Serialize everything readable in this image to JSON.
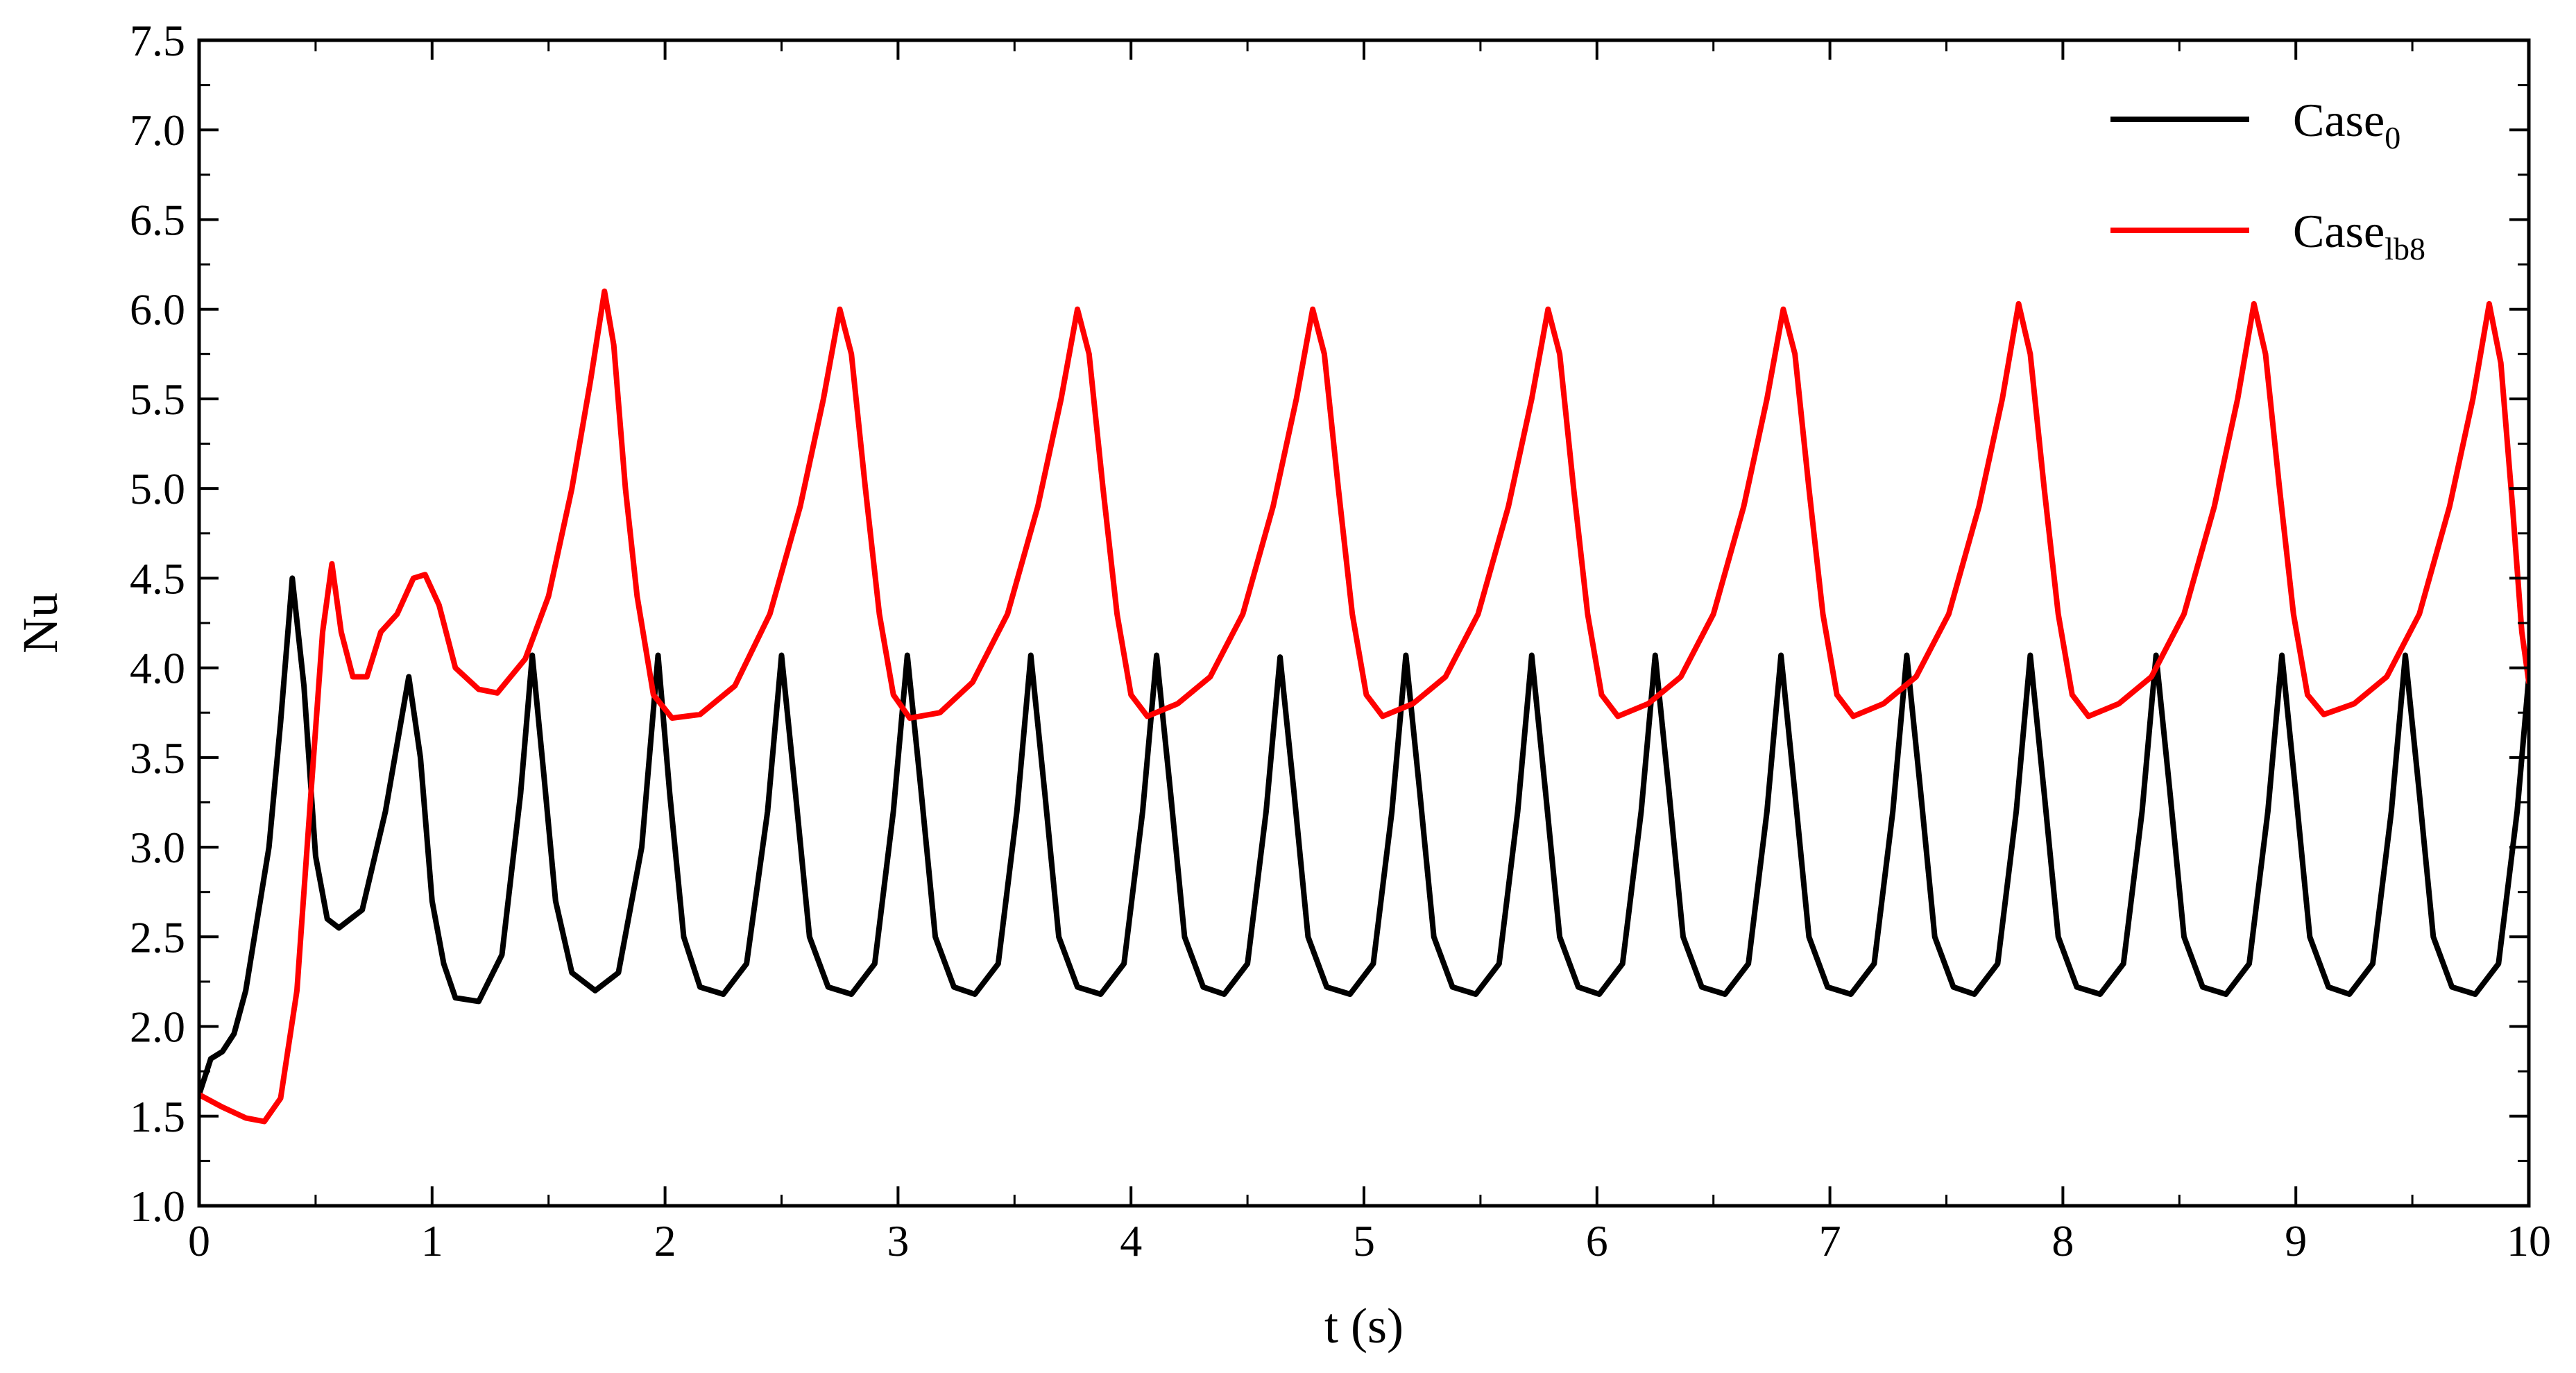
{
  "chart_data": {
    "type": "line",
    "xlabel": "t (s)",
    "ylabel": "Nu",
    "xlim": [
      0,
      10
    ],
    "ylim": [
      1.0,
      7.5
    ],
    "xticks": [
      "0",
      "1",
      "2",
      "3",
      "4",
      "5",
      "6",
      "7",
      "8",
      "9",
      "10"
    ],
    "yticks": [
      "1.0",
      "1.5",
      "2.0",
      "2.5",
      "3.0",
      "3.5",
      "4.0",
      "4.5",
      "5.0",
      "5.5",
      "6.0",
      "6.5",
      "7.0",
      "7.5"
    ],
    "grid": false,
    "legend_position": "top-right",
    "series": [
      {
        "name": "Case",
        "subscript": "0",
        "color": "#000000",
        "points": [
          [
            0.0,
            1.62
          ],
          [
            0.05,
            1.82
          ],
          [
            0.1,
            1.86
          ],
          [
            0.15,
            1.96
          ],
          [
            0.2,
            2.2
          ],
          [
            0.25,
            2.6
          ],
          [
            0.3,
            3.0
          ],
          [
            0.35,
            3.7
          ],
          [
            0.4,
            4.5
          ],
          [
            0.45,
            3.9
          ],
          [
            0.5,
            2.95
          ],
          [
            0.55,
            2.6
          ],
          [
            0.6,
            2.55
          ],
          [
            0.7,
            2.65
          ],
          [
            0.8,
            3.2
          ],
          [
            0.9,
            3.95
          ],
          [
            0.95,
            3.5
          ],
          [
            1.0,
            2.7
          ],
          [
            1.05,
            2.35
          ],
          [
            1.1,
            2.16
          ],
          [
            1.2,
            2.14
          ],
          [
            1.3,
            2.4
          ],
          [
            1.38,
            3.3
          ],
          [
            1.43,
            4.07
          ],
          [
            1.48,
            3.4
          ],
          [
            1.53,
            2.7
          ],
          [
            1.6,
            2.3
          ],
          [
            1.7,
            2.2
          ],
          [
            1.8,
            2.3
          ],
          [
            1.9,
            3.0
          ],
          [
            1.97,
            4.07
          ],
          [
            2.02,
            3.3
          ],
          [
            2.08,
            2.5
          ],
          [
            2.15,
            2.22
          ],
          [
            2.25,
            2.18
          ],
          [
            2.35,
            2.35
          ],
          [
            2.44,
            3.2
          ],
          [
            2.5,
            4.07
          ],
          [
            2.56,
            3.3
          ],
          [
            2.62,
            2.5
          ],
          [
            2.7,
            2.22
          ],
          [
            2.8,
            2.18
          ],
          [
            2.9,
            2.35
          ],
          [
            2.98,
            3.2
          ],
          [
            3.04,
            4.07
          ],
          [
            3.1,
            3.3
          ],
          [
            3.16,
            2.5
          ],
          [
            3.24,
            2.22
          ],
          [
            3.33,
            2.18
          ],
          [
            3.43,
            2.35
          ],
          [
            3.51,
            3.2
          ],
          [
            3.57,
            4.07
          ],
          [
            3.63,
            3.3
          ],
          [
            3.69,
            2.5
          ],
          [
            3.77,
            2.22
          ],
          [
            3.87,
            2.18
          ],
          [
            3.97,
            2.35
          ],
          [
            4.05,
            3.2
          ],
          [
            4.11,
            4.07
          ],
          [
            4.17,
            3.3
          ],
          [
            4.23,
            2.5
          ],
          [
            4.31,
            2.22
          ],
          [
            4.4,
            2.18
          ],
          [
            4.5,
            2.35
          ],
          [
            4.58,
            3.2
          ],
          [
            4.64,
            4.06
          ],
          [
            4.7,
            3.3
          ],
          [
            4.76,
            2.5
          ],
          [
            4.84,
            2.22
          ],
          [
            4.94,
            2.18
          ],
          [
            5.04,
            2.35
          ],
          [
            5.12,
            3.2
          ],
          [
            5.18,
            4.07
          ],
          [
            5.24,
            3.3
          ],
          [
            5.3,
            2.5
          ],
          [
            5.38,
            2.22
          ],
          [
            5.48,
            2.18
          ],
          [
            5.58,
            2.35
          ],
          [
            5.66,
            3.2
          ],
          [
            5.72,
            4.07
          ],
          [
            5.78,
            3.3
          ],
          [
            5.84,
            2.5
          ],
          [
            5.92,
            2.22
          ],
          [
            6.01,
            2.18
          ],
          [
            6.11,
            2.35
          ],
          [
            6.19,
            3.2
          ],
          [
            6.25,
            4.07
          ],
          [
            6.31,
            3.3
          ],
          [
            6.37,
            2.5
          ],
          [
            6.45,
            2.22
          ],
          [
            6.55,
            2.18
          ],
          [
            6.65,
            2.35
          ],
          [
            6.73,
            3.2
          ],
          [
            6.79,
            4.07
          ],
          [
            6.85,
            3.3
          ],
          [
            6.91,
            2.5
          ],
          [
            6.99,
            2.22
          ],
          [
            7.09,
            2.18
          ],
          [
            7.19,
            2.35
          ],
          [
            7.27,
            3.2
          ],
          [
            7.33,
            4.07
          ],
          [
            7.39,
            3.3
          ],
          [
            7.45,
            2.5
          ],
          [
            7.53,
            2.22
          ],
          [
            7.62,
            2.18
          ],
          [
            7.72,
            2.35
          ],
          [
            7.8,
            3.2
          ],
          [
            7.86,
            4.07
          ],
          [
            7.92,
            3.3
          ],
          [
            7.98,
            2.5
          ],
          [
            8.06,
            2.22
          ],
          [
            8.16,
            2.18
          ],
          [
            8.26,
            2.35
          ],
          [
            8.34,
            3.2
          ],
          [
            8.4,
            4.07
          ],
          [
            8.46,
            3.3
          ],
          [
            8.52,
            2.5
          ],
          [
            8.6,
            2.22
          ],
          [
            8.7,
            2.18
          ],
          [
            8.8,
            2.35
          ],
          [
            8.88,
            3.2
          ],
          [
            8.94,
            4.07
          ],
          [
            9.0,
            3.3
          ],
          [
            9.06,
            2.5
          ],
          [
            9.14,
            2.22
          ],
          [
            9.23,
            2.18
          ],
          [
            9.33,
            2.35
          ],
          [
            9.41,
            3.2
          ],
          [
            9.47,
            4.07
          ],
          [
            9.53,
            3.3
          ],
          [
            9.59,
            2.5
          ],
          [
            9.67,
            2.22
          ],
          [
            9.77,
            2.18
          ],
          [
            9.87,
            2.35
          ],
          [
            9.95,
            3.2
          ],
          [
            10.0,
            3.95
          ]
        ]
      },
      {
        "name": "Case",
        "subscript": "lb8",
        "color": "#ff0000",
        "points": [
          [
            0.0,
            1.62
          ],
          [
            0.1,
            1.55
          ],
          [
            0.2,
            1.49
          ],
          [
            0.28,
            1.47
          ],
          [
            0.35,
            1.6
          ],
          [
            0.42,
            2.2
          ],
          [
            0.48,
            3.3
          ],
          [
            0.53,
            4.2
          ],
          [
            0.57,
            4.58
          ],
          [
            0.61,
            4.2
          ],
          [
            0.66,
            3.95
          ],
          [
            0.72,
            3.95
          ],
          [
            0.78,
            4.2
          ],
          [
            0.85,
            4.3
          ],
          [
            0.92,
            4.5
          ],
          [
            0.97,
            4.52
          ],
          [
            1.03,
            4.35
          ],
          [
            1.1,
            4.0
          ],
          [
            1.2,
            3.88
          ],
          [
            1.28,
            3.86
          ],
          [
            1.4,
            4.05
          ],
          [
            1.5,
            4.4
          ],
          [
            1.6,
            5.0
          ],
          [
            1.68,
            5.6
          ],
          [
            1.74,
            6.1
          ],
          [
            1.78,
            5.8
          ],
          [
            1.83,
            5.0
          ],
          [
            1.88,
            4.4
          ],
          [
            1.95,
            3.85
          ],
          [
            2.03,
            3.72
          ],
          [
            2.15,
            3.74
          ],
          [
            2.3,
            3.9
          ],
          [
            2.45,
            4.3
          ],
          [
            2.58,
            4.9
          ],
          [
            2.68,
            5.5
          ],
          [
            2.75,
            6.0
          ],
          [
            2.8,
            5.75
          ],
          [
            2.86,
            5.0
          ],
          [
            2.92,
            4.3
          ],
          [
            2.98,
            3.85
          ],
          [
            3.05,
            3.72
          ],
          [
            3.18,
            3.75
          ],
          [
            3.32,
            3.92
          ],
          [
            3.47,
            4.3
          ],
          [
            3.6,
            4.9
          ],
          [
            3.7,
            5.5
          ],
          [
            3.77,
            6.0
          ],
          [
            3.82,
            5.75
          ],
          [
            3.88,
            5.0
          ],
          [
            3.94,
            4.3
          ],
          [
            4.0,
            3.85
          ],
          [
            4.07,
            3.73
          ],
          [
            4.2,
            3.8
          ],
          [
            4.34,
            3.95
          ],
          [
            4.48,
            4.3
          ],
          [
            4.61,
            4.9
          ],
          [
            4.71,
            5.5
          ],
          [
            4.78,
            6.0
          ],
          [
            4.83,
            5.75
          ],
          [
            4.89,
            5.0
          ],
          [
            4.95,
            4.3
          ],
          [
            5.01,
            3.85
          ],
          [
            5.08,
            3.73
          ],
          [
            5.21,
            3.8
          ],
          [
            5.35,
            3.95
          ],
          [
            5.49,
            4.3
          ],
          [
            5.62,
            4.9
          ],
          [
            5.72,
            5.5
          ],
          [
            5.79,
            6.0
          ],
          [
            5.84,
            5.75
          ],
          [
            5.9,
            5.0
          ],
          [
            5.96,
            4.3
          ],
          [
            6.02,
            3.85
          ],
          [
            6.09,
            3.73
          ],
          [
            6.22,
            3.8
          ],
          [
            6.36,
            3.95
          ],
          [
            6.5,
            4.3
          ],
          [
            6.63,
            4.9
          ],
          [
            6.73,
            5.5
          ],
          [
            6.8,
            6.0
          ],
          [
            6.85,
            5.75
          ],
          [
            6.91,
            5.0
          ],
          [
            6.97,
            4.3
          ],
          [
            7.03,
            3.85
          ],
          [
            7.1,
            3.73
          ],
          [
            7.23,
            3.8
          ],
          [
            7.37,
            3.95
          ],
          [
            7.51,
            4.3
          ],
          [
            7.64,
            4.9
          ],
          [
            7.74,
            5.5
          ],
          [
            7.81,
            6.03
          ],
          [
            7.86,
            5.75
          ],
          [
            7.92,
            5.0
          ],
          [
            7.98,
            4.3
          ],
          [
            8.04,
            3.85
          ],
          [
            8.11,
            3.73
          ],
          [
            8.24,
            3.8
          ],
          [
            8.38,
            3.95
          ],
          [
            8.52,
            4.3
          ],
          [
            8.65,
            4.9
          ],
          [
            8.75,
            5.5
          ],
          [
            8.82,
            6.03
          ],
          [
            8.87,
            5.75
          ],
          [
            8.93,
            5.0
          ],
          [
            8.99,
            4.3
          ],
          [
            9.05,
            3.85
          ],
          [
            9.12,
            3.74
          ],
          [
            9.25,
            3.8
          ],
          [
            9.39,
            3.95
          ],
          [
            9.53,
            4.3
          ],
          [
            9.66,
            4.9
          ],
          [
            9.76,
            5.5
          ],
          [
            9.83,
            6.03
          ],
          [
            9.88,
            5.7
          ],
          [
            9.93,
            4.9
          ],
          [
            9.97,
            4.2
          ],
          [
            10.0,
            3.92
          ]
        ]
      }
    ]
  }
}
